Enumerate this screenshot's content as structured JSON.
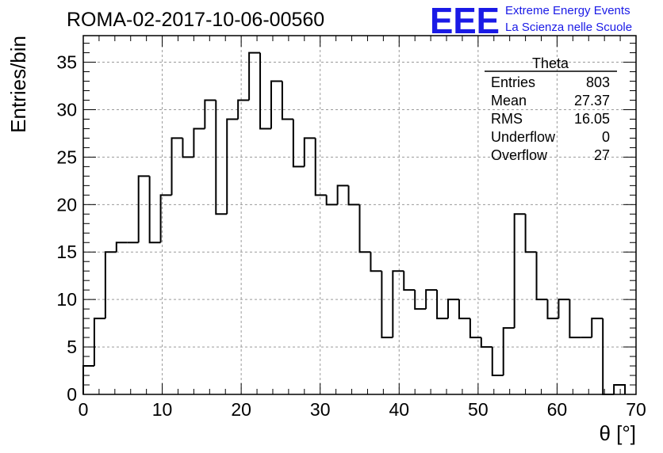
{
  "chart_data": {
    "type": "histogram",
    "title": "ROMA-02-2017-10-06-00560",
    "xlabel": "θ [°]",
    "ylabel": "Entries/bin",
    "xlim": [
      0,
      70
    ],
    "ylim": [
      0,
      37.8
    ],
    "grid": true,
    "bin_width": 1.4,
    "x_ticks": [
      0,
      10,
      20,
      30,
      40,
      50,
      60,
      70
    ],
    "y_ticks": [
      0,
      5,
      10,
      15,
      20,
      25,
      30,
      35
    ],
    "values": [
      3,
      8,
      15,
      16,
      16,
      23,
      16,
      21,
      27,
      25,
      28,
      31,
      19,
      29,
      31,
      36,
      28,
      33,
      29,
      24,
      27,
      21,
      20,
      22,
      20,
      15,
      13,
      6,
      13,
      11,
      9,
      11,
      8,
      10,
      8,
      6,
      5,
      2,
      7,
      19,
      15,
      10,
      8,
      10,
      6,
      6,
      8,
      0,
      1
    ]
  },
  "stats_box": {
    "title": "Theta",
    "rows": [
      {
        "label": "Entries",
        "value": "803"
      },
      {
        "label": "Mean",
        "value": "27.37"
      },
      {
        "label": "RMS",
        "value": "16.05"
      },
      {
        "label": "Underflow",
        "value": "0"
      },
      {
        "label": "Overflow",
        "value": "27"
      }
    ]
  },
  "logo": {
    "text": "EEE",
    "line1": "Extreme Energy Events",
    "line2": "La Scienza nelle Scuole",
    "color": "#1a1ae6"
  }
}
